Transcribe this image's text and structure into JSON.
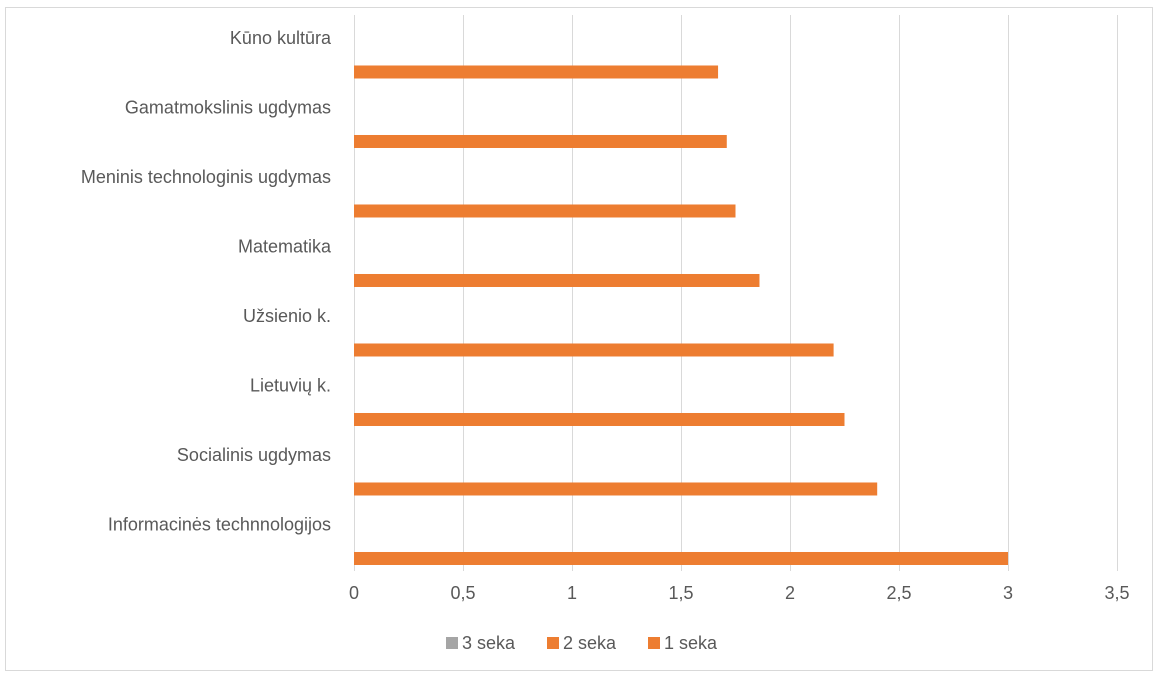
{
  "chart_data": {
    "type": "bar",
    "orientation": "horizontal",
    "categories": [
      "Informacinės technnologijos",
      "Socialinis ugdymas",
      "Lietuvių k.",
      "Užsienio k.",
      "Matematika",
      "Meninis technologinis ugdymas",
      "Gamatmokslinis ugdymas",
      "Kūno kultūra"
    ],
    "series": [
      {
        "name": "1 seka",
        "values": [
          3.0,
          2.4,
          2.25,
          2.2,
          1.86,
          1.75,
          1.71,
          1.67
        ],
        "color": "#ed7d31"
      },
      {
        "name": "2 seka",
        "values": [
          null,
          null,
          null,
          null,
          null,
          null,
          null,
          null
        ],
        "color": "#ed7d31"
      },
      {
        "name": "3 seka",
        "values": [
          null,
          null,
          null,
          null,
          null,
          null,
          null,
          null
        ],
        "color": "#a5a5a5"
      }
    ],
    "xlim": [
      0,
      3.5
    ],
    "x_ticks": [
      "0",
      "0,5",
      "1",
      "1,5",
      "2",
      "2,5",
      "3",
      "3,5"
    ],
    "grid": true,
    "legend_position": "bottom",
    "legend_order": [
      "3 seka",
      "2 seka",
      "1 seka"
    ],
    "title": "",
    "xlabel": "",
    "ylabel": ""
  },
  "colors": {
    "gridline": "#d9d9d9",
    "text": "#595959",
    "frame": "#d9d9d9"
  }
}
